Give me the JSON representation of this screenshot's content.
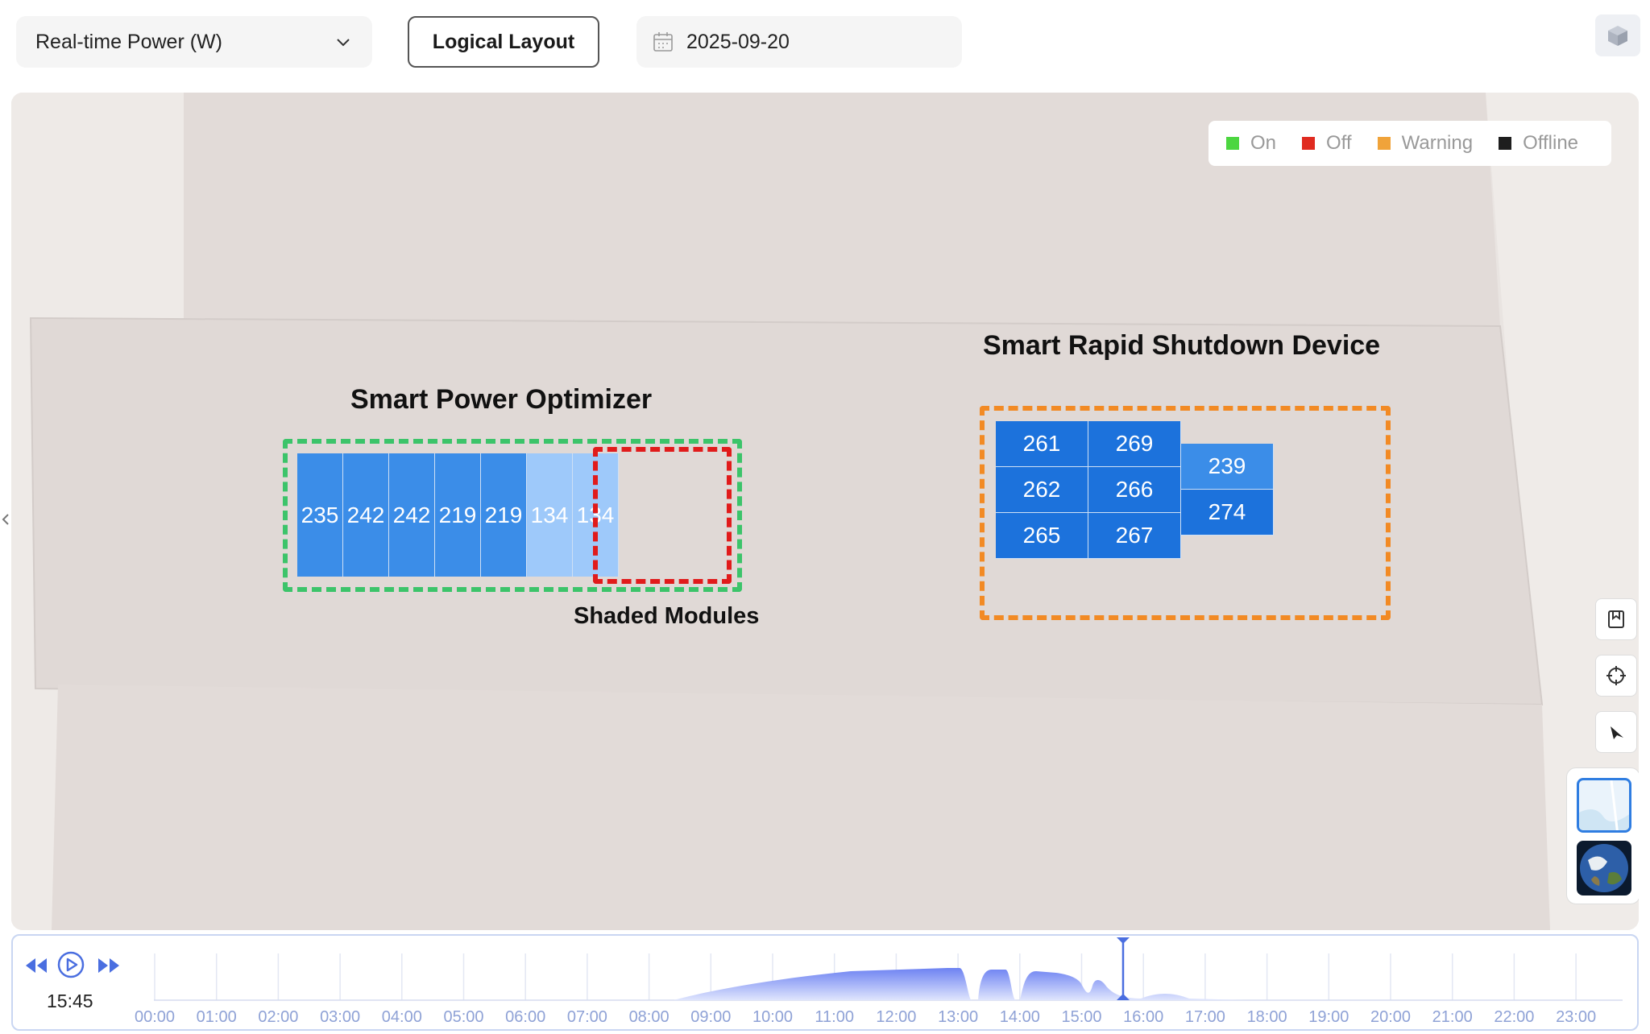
{
  "toolbar": {
    "metric_select": "Real-time Power (W)",
    "layout_button": "Logical Layout",
    "date": "2025-09-20"
  },
  "legend": [
    {
      "label": "On",
      "color": "#4cd640"
    },
    {
      "label": "Off",
      "color": "#e02b20"
    },
    {
      "label": "Warning",
      "color": "#f0a33a"
    },
    {
      "label": "Offline",
      "color": "#1e1e1e"
    }
  ],
  "optimizer": {
    "title": "Smart Power Optimizer",
    "shaded_label": "Shaded Modules",
    "panels": [
      "235",
      "242",
      "242",
      "219",
      "219",
      "134",
      "134"
    ],
    "border_color": "#3cc46a",
    "shaded_border_color": "#e11b1b",
    "panel_color": "#3b8de8",
    "shaded_panel_color": "#9ec9fa"
  },
  "rsd": {
    "title": "Smart Rapid Shutdown Device",
    "left_grid": [
      [
        "261",
        "269"
      ],
      [
        "262",
        "266"
      ],
      [
        "265",
        "267"
      ]
    ],
    "right_column": [
      "239",
      "274"
    ],
    "border_color": "#f28a24",
    "panel_color": "#1c72dc",
    "right_top_color": "#3b8de8"
  },
  "timeline": {
    "current_time": "15:45",
    "ticks": [
      "00:00",
      "01:00",
      "02:00",
      "03:00",
      "04:00",
      "05:00",
      "06:00",
      "07:00",
      "08:00",
      "09:00",
      "10:00",
      "11:00",
      "12:00",
      "13:00",
      "14:00",
      "15:00",
      "16:00",
      "17:00",
      "18:00",
      "19:00",
      "20:00",
      "21:00",
      "22:00",
      "23:00"
    ]
  },
  "icons": {
    "dropdown": "chevron-down-icon",
    "date": "calendar-icon",
    "view3d": "cube-icon",
    "rewind": "rewind-icon",
    "play": "play-icon",
    "forward": "fast-forward-icon"
  }
}
